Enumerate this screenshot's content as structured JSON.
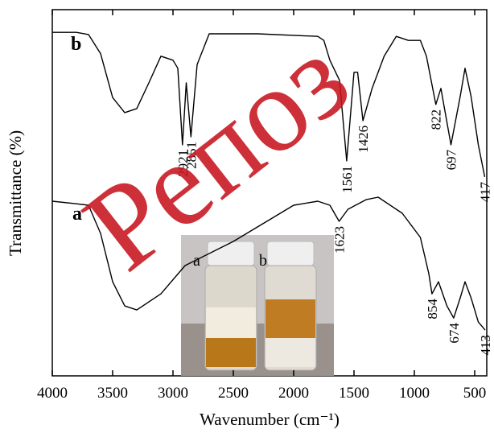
{
  "chart_data": {
    "type": "line",
    "xlabel": "Wavenumber (cm⁻¹)",
    "ylabel": "Transmittance (%)",
    "xlim": [
      4000,
      400
    ],
    "ylim": [
      0,
      100
    ],
    "xticks": [
      4000,
      3500,
      3000,
      2500,
      2000,
      1500,
      1000,
      500
    ],
    "series": [
      {
        "name": "a",
        "color": "#000000",
        "x": [
          4000,
          3800,
          3700,
          3600,
          3500,
          3400,
          3300,
          3100,
          2900,
          2500,
          2000,
          1800,
          1700,
          1623,
          1550,
          1400,
          1300,
          1100,
          950,
          880,
          854,
          800,
          730,
          674,
          620,
          580,
          530,
          470,
          413
        ],
        "values": [
          47.7,
          47,
          46.6,
          38.9,
          25.7,
          19.1,
          18,
          22.4,
          30.1,
          36.7,
          46.6,
          47.7,
          46.6,
          42.2,
          45.5,
          48.1,
          48.8,
          44.4,
          37.8,
          27.9,
          22.4,
          25.7,
          19.1,
          15.8,
          21.3,
          25.7,
          21.3,
          14.7,
          12.5
        ],
        "peaks": [
          1623,
          854,
          674,
          413
        ]
      },
      {
        "name": "b",
        "color": "#000000",
        "x": [
          4000,
          3800,
          3700,
          3600,
          3500,
          3400,
          3300,
          3200,
          3100,
          3000,
          2960,
          2921,
          2890,
          2851,
          2800,
          2700,
          2300,
          1800,
          1750,
          1700,
          1620,
          1561,
          1500,
          1470,
          1426,
          1350,
          1250,
          1150,
          1050,
          950,
          900,
          822,
          780,
          697,
          620,
          580,
          530,
          470,
          417
        ],
        "values": [
          93.8,
          93.8,
          93.2,
          88,
          76,
          71.9,
          73,
          80,
          87.3,
          86.2,
          84,
          63.1,
          80,
          65.3,
          85,
          93.4,
          93.4,
          92.7,
          91.6,
          86.2,
          80.7,
          58.7,
          82.9,
          82.9,
          69.7,
          78.5,
          87.3,
          92.7,
          91.6,
          91.6,
          87.3,
          74.1,
          78.5,
          63.1,
          76.3,
          84,
          76.3,
          63.1,
          54.3
        ],
        "peaks": [
          2921,
          2851,
          1561,
          1426,
          822,
          697,
          417
        ]
      }
    ],
    "inset": {
      "labels": [
        "a",
        "b"
      ]
    },
    "watermark": "Репоз"
  }
}
